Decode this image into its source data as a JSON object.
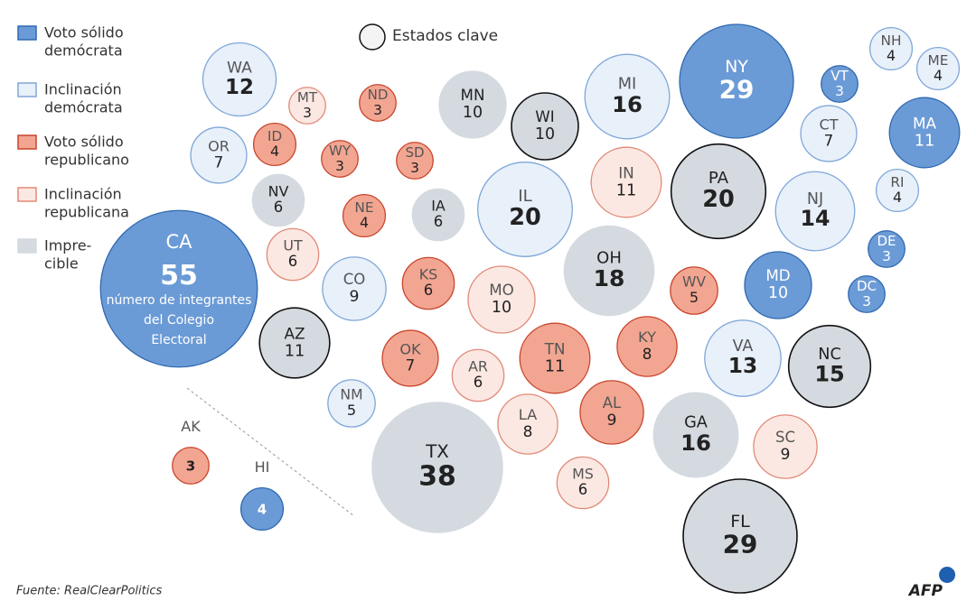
{
  "legend": {
    "items": [
      {
        "lines": [
          "Voto sólido",
          "demócrata"
        ],
        "fill": "#6b9bd6",
        "stroke": "#2f68b0"
      },
      {
        "lines": [
          "Inclinación",
          "demócrata"
        ],
        "fill": "#e8f0fa",
        "stroke": "#7fa7d8"
      },
      {
        "lines": [
          "Voto sólido",
          "republicano"
        ],
        "fill": "#f2a692",
        "stroke": "#c8452c"
      },
      {
        "lines": [
          "Inclinación",
          "republicana"
        ],
        "fill": "#fce8e3",
        "stroke": "#e08a77"
      },
      {
        "lines": [
          "Impre-",
          "cible"
        ],
        "fill": "#d4dae0",
        "stroke": "#d4dae0"
      }
    ],
    "key_states": "Estados clave"
  },
  "states": [
    {
      "abbr": "WA",
      "votes": 12,
      "fill": "#e8f0fa",
      "stroke": "#7fa7d8",
      "key": false
    },
    {
      "abbr": "MT",
      "votes": 3,
      "fill": "#fce8e3",
      "stroke": "#e08a77",
      "key": false
    },
    {
      "abbr": "ND",
      "votes": 3,
      "fill": "#f2a692",
      "stroke": "#c8452c",
      "key": false
    },
    {
      "abbr": "MN",
      "votes": 10,
      "fill": "#d4dae0",
      "stroke": "#d4dae0",
      "key": false
    },
    {
      "abbr": "WI",
      "votes": 10,
      "fill": "#d4dae0",
      "stroke": "#d4dae0",
      "key": true
    },
    {
      "abbr": "MI",
      "votes": 16,
      "fill": "#e8f0fa",
      "stroke": "#7fa7d8",
      "key": false
    },
    {
      "abbr": "NY",
      "votes": 29,
      "fill": "#6b9bd6",
      "stroke": "#2f68b0",
      "key": false
    },
    {
      "abbr": "VT",
      "votes": 3,
      "fill": "#6b9bd6",
      "stroke": "#2f68b0",
      "key": false
    },
    {
      "abbr": "NH",
      "votes": 4,
      "fill": "#e8f0fa",
      "stroke": "#7fa7d8",
      "key": false
    },
    {
      "abbr": "ME",
      "votes": 4,
      "fill": "#e8f0fa",
      "stroke": "#7fa7d8",
      "key": false
    },
    {
      "abbr": "OR",
      "votes": 7,
      "fill": "#e8f0fa",
      "stroke": "#7fa7d8",
      "key": false
    },
    {
      "abbr": "ID",
      "votes": 4,
      "fill": "#f2a692",
      "stroke": "#c8452c",
      "key": false
    },
    {
      "abbr": "WY",
      "votes": 3,
      "fill": "#f2a692",
      "stroke": "#c8452c",
      "key": false
    },
    {
      "abbr": "SD",
      "votes": 3,
      "fill": "#f2a692",
      "stroke": "#c8452c",
      "key": false
    },
    {
      "abbr": "CT",
      "votes": 7,
      "fill": "#e8f0fa",
      "stroke": "#7fa7d8",
      "key": false
    },
    {
      "abbr": "MA",
      "votes": 11,
      "fill": "#6b9bd6",
      "stroke": "#2f68b0",
      "key": false
    },
    {
      "abbr": "IN",
      "votes": 11,
      "fill": "#fce8e3",
      "stroke": "#e08a77",
      "key": false
    },
    {
      "abbr": "IL",
      "votes": 20,
      "fill": "#e8f0fa",
      "stroke": "#7fa7d8",
      "key": false
    },
    {
      "abbr": "PA",
      "votes": 20,
      "fill": "#d4dae0",
      "stroke": "#d4dae0",
      "key": true
    },
    {
      "abbr": "NJ",
      "votes": 14,
      "fill": "#e8f0fa",
      "stroke": "#7fa7d8",
      "key": false
    },
    {
      "abbr": "RI",
      "votes": 4,
      "fill": "#e8f0fa",
      "stroke": "#7fa7d8",
      "key": false
    },
    {
      "abbr": "NV",
      "votes": 6,
      "fill": "#d4dae0",
      "stroke": "#d4dae0",
      "key": false
    },
    {
      "abbr": "NE",
      "votes": 4,
      "fill": "#f2a692",
      "stroke": "#c8452c",
      "key": false
    },
    {
      "abbr": "IA",
      "votes": 6,
      "fill": "#d4dae0",
      "stroke": "#d4dae0",
      "key": false
    },
    {
      "abbr": "DE",
      "votes": 3,
      "fill": "#6b9bd6",
      "stroke": "#2f68b0",
      "key": false
    },
    {
      "abbr": "CA",
      "votes": 55,
      "fill": "#6b9bd6",
      "stroke": "#2f68b0",
      "key": false,
      "note": [
        "número de integrantes",
        "del Colegio",
        "Electoral"
      ]
    },
    {
      "abbr": "UT",
      "votes": 6,
      "fill": "#fce8e3",
      "stroke": "#e08a77",
      "key": false
    },
    {
      "abbr": "CO",
      "votes": 9,
      "fill": "#e8f0fa",
      "stroke": "#7fa7d8",
      "key": false
    },
    {
      "abbr": "KS",
      "votes": 6,
      "fill": "#f2a692",
      "stroke": "#c8452c",
      "key": false
    },
    {
      "abbr": "MO",
      "votes": 10,
      "fill": "#fce8e3",
      "stroke": "#e08a77",
      "key": false
    },
    {
      "abbr": "OH",
      "votes": 18,
      "fill": "#d4dae0",
      "stroke": "#d4dae0",
      "key": false
    },
    {
      "abbr": "WV",
      "votes": 5,
      "fill": "#f2a692",
      "stroke": "#c8452c",
      "key": false
    },
    {
      "abbr": "MD",
      "votes": 10,
      "fill": "#6b9bd6",
      "stroke": "#2f68b0",
      "key": false
    },
    {
      "abbr": "DC",
      "votes": 3,
      "fill": "#6b9bd6",
      "stroke": "#2f68b0",
      "key": false
    },
    {
      "abbr": "AZ",
      "votes": 11,
      "fill": "#d4dae0",
      "stroke": "#d4dae0",
      "key": true
    },
    {
      "abbr": "OK",
      "votes": 7,
      "fill": "#f2a692",
      "stroke": "#c8452c",
      "key": false
    },
    {
      "abbr": "AR",
      "votes": 6,
      "fill": "#fce8e3",
      "stroke": "#e08a77",
      "key": false
    },
    {
      "abbr": "TN",
      "votes": 11,
      "fill": "#f2a692",
      "stroke": "#c8452c",
      "key": false
    },
    {
      "abbr": "KY",
      "votes": 8,
      "fill": "#f2a692",
      "stroke": "#c8452c",
      "key": false
    },
    {
      "abbr": "VA",
      "votes": 13,
      "fill": "#e8f0fa",
      "stroke": "#7fa7d8",
      "key": false
    },
    {
      "abbr": "NC",
      "votes": 15,
      "fill": "#d4dae0",
      "stroke": "#d4dae0",
      "key": true
    },
    {
      "abbr": "NM",
      "votes": 5,
      "fill": "#e8f0fa",
      "stroke": "#7fa7d8",
      "key": false
    },
    {
      "abbr": "LA",
      "votes": 8,
      "fill": "#fce8e3",
      "stroke": "#e08a77",
      "key": false
    },
    {
      "abbr": "AL",
      "votes": 9,
      "fill": "#f2a692",
      "stroke": "#c8452c",
      "key": false
    },
    {
      "abbr": "GA",
      "votes": 16,
      "fill": "#d4dae0",
      "stroke": "#d4dae0",
      "key": false
    },
    {
      "abbr": "SC",
      "votes": 9,
      "fill": "#fce8e3",
      "stroke": "#e08a77",
      "key": false
    },
    {
      "abbr": "AK",
      "votes": 3,
      "fill": "#f2a692",
      "stroke": "#c8452c",
      "key": false
    },
    {
      "abbr": "HI",
      "votes": 4,
      "fill": "#6b9bd6",
      "stroke": "#2f68b0",
      "key": false
    },
    {
      "abbr": "TX",
      "votes": 38,
      "fill": "#d4dae0",
      "stroke": "#d4dae0",
      "key": false
    },
    {
      "abbr": "MS",
      "votes": 6,
      "fill": "#fce8e3",
      "stroke": "#e08a77",
      "key": false
    },
    {
      "abbr": "FL",
      "votes": 29,
      "fill": "#d4dae0",
      "stroke": "#d4dae0",
      "key": true
    }
  ],
  "source": "Fuente: RealClearPolitics",
  "logo": "AFP"
}
